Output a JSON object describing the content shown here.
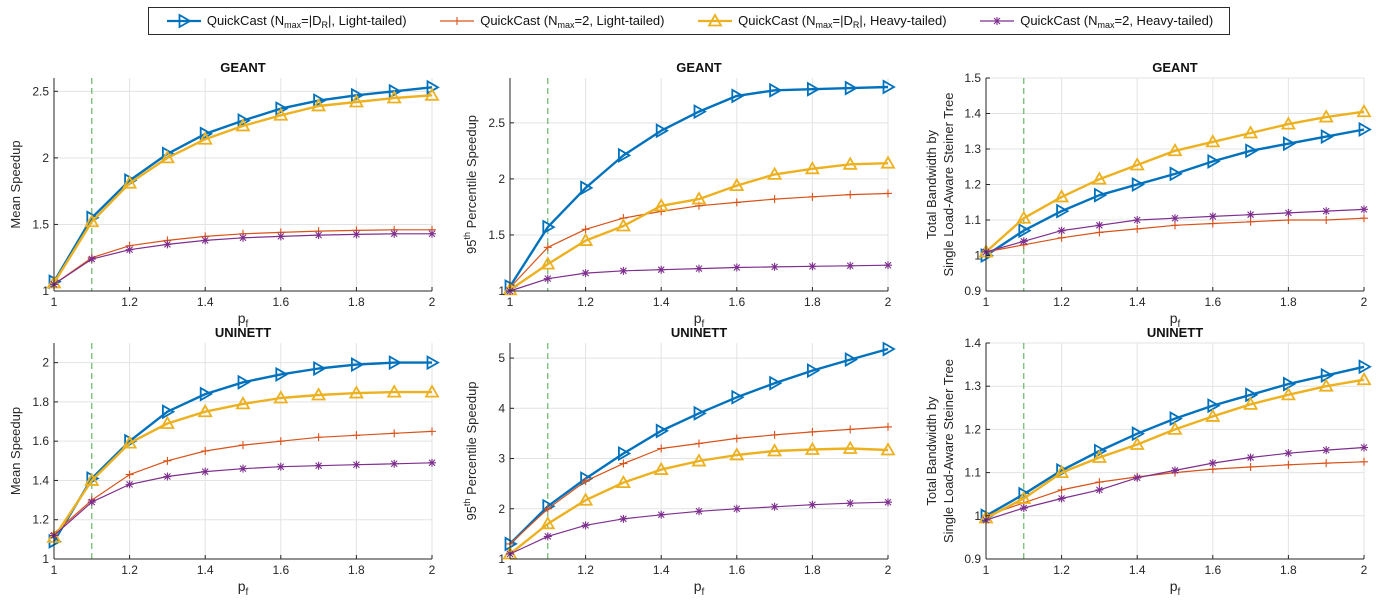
{
  "legend": [
    {
      "pre": "QuickCast (N",
      "sub": "max",
      "post": "=|D",
      "sub2": "R",
      "post2": "|, Light-tailed)",
      "color": "#0072BD",
      "marker": "triangle-right"
    },
    {
      "pre": "QuickCast (N",
      "sub": "max",
      "post": "=2, Light-tailed)",
      "sub2": "",
      "post2": "",
      "color": "#D95319",
      "marker": "plus"
    },
    {
      "pre": "QuickCast (N",
      "sub": "max",
      "post": "=|D",
      "sub2": "R",
      "post2": "|, Heavy-tailed)",
      "color": "#EDB120",
      "marker": "triangle-up"
    },
    {
      "pre": "QuickCast (N",
      "sub": "max",
      "post": "=2, Heavy-tailed)",
      "sub2": "",
      "post2": "",
      "color": "#7E2F8E",
      "marker": "asterisk"
    }
  ],
  "chart_data": [
    {
      "type": "line",
      "title": "GEANT",
      "xlabel": "p",
      "xlabel_sub": "f",
      "ylabel": [
        "Mean Speedup"
      ],
      "ylabel_sup": "",
      "x": [
        1,
        1.1,
        1.2,
        1.3,
        1.4,
        1.5,
        1.6,
        1.7,
        1.8,
        1.9,
        2
      ],
      "xlim": [
        1,
        2
      ],
      "xticks": [
        "1",
        "1.2",
        "1.4",
        "1.6",
        "1.8",
        "2"
      ],
      "ylim": [
        1,
        2.6
      ],
      "yticks": [
        1,
        1.5,
        2,
        2.5
      ],
      "yticklabels": [
        "1",
        "1.5",
        "2",
        "2.5"
      ],
      "vline": 1.1,
      "grid": true,
      "series": [
        {
          "values": [
            1.07,
            1.55,
            1.83,
            2.03,
            2.18,
            2.28,
            2.37,
            2.43,
            2.47,
            2.5,
            2.53
          ]
        },
        {
          "values": [
            1.05,
            1.25,
            1.34,
            1.38,
            1.41,
            1.43,
            1.44,
            1.45,
            1.455,
            1.46,
            1.46
          ]
        },
        {
          "values": [
            1.06,
            1.52,
            1.81,
            2.0,
            2.14,
            2.24,
            2.32,
            2.39,
            2.42,
            2.45,
            2.47
          ]
        },
        {
          "values": [
            1.05,
            1.24,
            1.31,
            1.35,
            1.38,
            1.4,
            1.41,
            1.42,
            1.425,
            1.43,
            1.43
          ]
        }
      ]
    },
    {
      "type": "line",
      "title": "GEANT",
      "xlabel": "p",
      "xlabel_sub": "f",
      "ylabel": [
        "95",
        " Percentile Speedup"
      ],
      "ylabel_sup": "th",
      "x": [
        1,
        1.1,
        1.2,
        1.3,
        1.4,
        1.5,
        1.6,
        1.7,
        1.8,
        1.9,
        2
      ],
      "xlim": [
        1,
        2
      ],
      "xticks": [
        "1",
        "1.2",
        "1.4",
        "1.6",
        "1.8",
        "2"
      ],
      "ylim": [
        1,
        2.9
      ],
      "yticks": [
        1,
        1.5,
        2,
        2.5
      ],
      "yticklabels": [
        "1",
        "1.5",
        "2",
        "2.5"
      ],
      "vline": 1.1,
      "grid": true,
      "series": [
        {
          "values": [
            1.04,
            1.57,
            1.92,
            2.21,
            2.43,
            2.6,
            2.74,
            2.79,
            2.8,
            2.81,
            2.82
          ]
        },
        {
          "values": [
            1.03,
            1.39,
            1.55,
            1.65,
            1.71,
            1.76,
            1.79,
            1.82,
            1.84,
            1.86,
            1.87
          ]
        },
        {
          "values": [
            1.01,
            1.24,
            1.45,
            1.58,
            1.76,
            1.82,
            1.94,
            2.04,
            2.09,
            2.13,
            2.14
          ]
        },
        {
          "values": [
            1.0,
            1.11,
            1.16,
            1.18,
            1.19,
            1.2,
            1.21,
            1.215,
            1.22,
            1.225,
            1.23
          ]
        }
      ]
    },
    {
      "type": "line",
      "title": "GEANT",
      "xlabel": "p",
      "xlabel_sub": "f",
      "ylabel": [
        "Total Bandwidth by",
        "Single Load-Aware Steiner Tree"
      ],
      "ylabel_sup": "",
      "x": [
        1,
        1.1,
        1.2,
        1.3,
        1.4,
        1.5,
        1.6,
        1.7,
        1.8,
        1.9,
        2
      ],
      "xlim": [
        1,
        2
      ],
      "xticks": [
        "1",
        "1.2",
        "1.4",
        "1.6",
        "1.8",
        "2"
      ],
      "ylim": [
        0.9,
        1.5
      ],
      "yticks": [
        0.9,
        1,
        1.1,
        1.2,
        1.3,
        1.4,
        1.5
      ],
      "yticklabels": [
        "0.9",
        "1",
        "1.1",
        "1.2",
        "1.3",
        "1.4",
        "1.5"
      ],
      "vline": 1.1,
      "grid": true,
      "series": [
        {
          "values": [
            1.0,
            1.07,
            1.125,
            1.17,
            1.2,
            1.23,
            1.265,
            1.295,
            1.315,
            1.335,
            1.355
          ]
        },
        {
          "values": [
            1.01,
            1.03,
            1.05,
            1.065,
            1.075,
            1.085,
            1.09,
            1.095,
            1.1,
            1.1,
            1.105
          ]
        },
        {
          "values": [
            1.01,
            1.105,
            1.165,
            1.215,
            1.255,
            1.295,
            1.32,
            1.345,
            1.37,
            1.39,
            1.405
          ]
        },
        {
          "values": [
            1.01,
            1.04,
            1.07,
            1.085,
            1.1,
            1.105,
            1.11,
            1.115,
            1.12,
            1.125,
            1.13
          ]
        }
      ]
    },
    {
      "type": "line",
      "title": "UNINETT",
      "xlabel": "p",
      "xlabel_sub": "f",
      "ylabel": [
        "Mean Speedup"
      ],
      "ylabel_sup": "",
      "x": [
        1,
        1.1,
        1.2,
        1.3,
        1.4,
        1.5,
        1.6,
        1.7,
        1.8,
        1.9,
        2
      ],
      "xlim": [
        1,
        2
      ],
      "xticks": [
        "1",
        "1.2",
        "1.4",
        "1.6",
        "1.8",
        "2"
      ],
      "ylim": [
        1,
        2.1
      ],
      "yticks": [
        1,
        1.2,
        1.4,
        1.6,
        1.8,
        2
      ],
      "yticklabels": [
        "1",
        "1.2",
        "1.4",
        "1.6",
        "1.8",
        "2"
      ],
      "vline": 1.1,
      "grid": true,
      "series": [
        {
          "values": [
            1.09,
            1.41,
            1.6,
            1.75,
            1.84,
            1.9,
            1.94,
            1.97,
            1.99,
            2.0,
            2.0
          ]
        },
        {
          "values": [
            1.13,
            1.3,
            1.43,
            1.5,
            1.55,
            1.58,
            1.6,
            1.62,
            1.63,
            1.64,
            1.65
          ]
        },
        {
          "values": [
            1.11,
            1.4,
            1.59,
            1.69,
            1.75,
            1.79,
            1.82,
            1.835,
            1.845,
            1.85,
            1.85
          ]
        },
        {
          "values": [
            1.12,
            1.29,
            1.38,
            1.42,
            1.445,
            1.46,
            1.47,
            1.475,
            1.48,
            1.485,
            1.49
          ]
        }
      ]
    },
    {
      "type": "line",
      "title": "UNINETT",
      "xlabel": "p",
      "xlabel_sub": "f",
      "ylabel": [
        "95",
        " Percentile Speedup"
      ],
      "ylabel_sup": "th",
      "x": [
        1,
        1.1,
        1.2,
        1.3,
        1.4,
        1.5,
        1.6,
        1.7,
        1.8,
        1.9,
        2
      ],
      "xlim": [
        1,
        2
      ],
      "xticks": [
        "1",
        "1.2",
        "1.4",
        "1.6",
        "1.8",
        "2"
      ],
      "ylim": [
        1,
        5.3
      ],
      "yticks": [
        1,
        2,
        3,
        4,
        5
      ],
      "yticklabels": [
        "1",
        "2",
        "3",
        "4",
        "5"
      ],
      "vline": 1.1,
      "grid": true,
      "series": [
        {
          "values": [
            1.3,
            2.05,
            2.6,
            3.1,
            3.55,
            3.9,
            4.22,
            4.5,
            4.75,
            4.97,
            5.18
          ]
        },
        {
          "values": [
            1.3,
            2.0,
            2.55,
            2.9,
            3.2,
            3.3,
            3.4,
            3.47,
            3.53,
            3.58,
            3.63
          ]
        },
        {
          "values": [
            1.1,
            1.7,
            2.17,
            2.52,
            2.78,
            2.95,
            3.07,
            3.15,
            3.18,
            3.2,
            3.17
          ]
        },
        {
          "values": [
            1.1,
            1.45,
            1.67,
            1.8,
            1.88,
            1.95,
            2.0,
            2.04,
            2.08,
            2.11,
            2.13
          ]
        }
      ]
    },
    {
      "type": "line",
      "title": "UNINETT",
      "xlabel": "p",
      "xlabel_sub": "f",
      "ylabel": [
        "Total Bandwidth by",
        "Single Load-Aware Steiner Tree"
      ],
      "ylabel_sup": "",
      "x": [
        1,
        1.1,
        1.2,
        1.3,
        1.4,
        1.5,
        1.6,
        1.7,
        1.8,
        1.9,
        2
      ],
      "xlim": [
        1,
        2
      ],
      "xticks": [
        "1",
        "1.2",
        "1.4",
        "1.6",
        "1.8",
        "2"
      ],
      "ylim": [
        0.9,
        1.4
      ],
      "yticks": [
        0.9,
        1,
        1.1,
        1.2,
        1.3,
        1.4
      ],
      "yticklabels": [
        "0.9",
        "1",
        "1.1",
        "1.2",
        "1.3",
        "1.4"
      ],
      "vline": 1.1,
      "grid": true,
      "series": [
        {
          "values": [
            1.0,
            1.05,
            1.105,
            1.15,
            1.19,
            1.225,
            1.255,
            1.28,
            1.305,
            1.325,
            1.345
          ]
        },
        {
          "values": [
            1.0,
            1.03,
            1.06,
            1.078,
            1.09,
            1.1,
            1.108,
            1.113,
            1.118,
            1.122,
            1.125
          ]
        },
        {
          "values": [
            0.995,
            1.04,
            1.1,
            1.135,
            1.165,
            1.2,
            1.23,
            1.258,
            1.28,
            1.3,
            1.315
          ]
        },
        {
          "values": [
            0.99,
            1.018,
            1.04,
            1.06,
            1.088,
            1.105,
            1.122,
            1.135,
            1.145,
            1.152,
            1.158
          ]
        }
      ]
    }
  ]
}
